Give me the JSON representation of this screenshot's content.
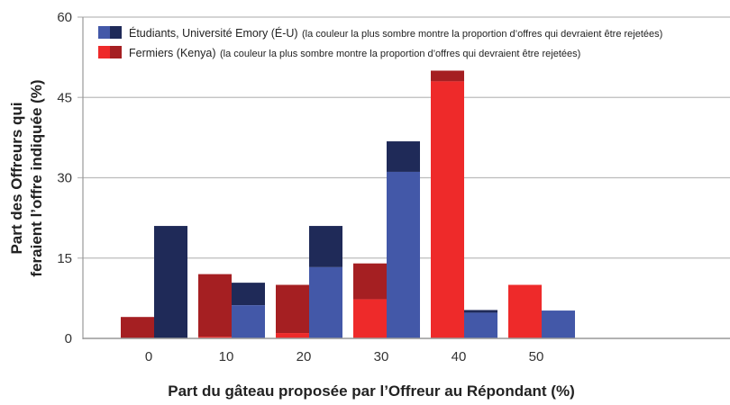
{
  "chart_data": {
    "type": "bar",
    "stacked_within_series": true,
    "xlabel": "Part du gâteau proposée par l’Offreur au Répondant (%)",
    "ylabel_line1": "Part des Offreurs qui",
    "ylabel_line2": "feraient l’offre indiquée  (%)",
    "categories": [
      "0",
      "10",
      "20",
      "30",
      "40",
      "50"
    ],
    "ylim": [
      0,
      60
    ],
    "yticks": [
      "0",
      "15",
      "30",
      "45",
      "60"
    ],
    "grid": true,
    "legend_position": "top-left",
    "series": [
      {
        "name": "Fermiers (Kenya)",
        "note": "(la couleur la plus sombre montre la proportion d’offres qui devraient être rejetées)",
        "color_light": "#ee2a2a",
        "color_dark": "#a51f22",
        "totals": [
          4,
          12,
          10,
          14,
          50,
          10
        ],
        "accepted": [
          0,
          0.3,
          1,
          7.3,
          48,
          10
        ]
      },
      {
        "name": "Étudiants, Université Emory (É-U)",
        "note": "(la couleur la plus sombre montre la proportion d’offres qui devraient être rejetées)",
        "color_light": "#4358a8",
        "color_dark": "#1f2a58",
        "totals": [
          21,
          10.4,
          21,
          36.8,
          5.3,
          5.2
        ],
        "accepted": [
          0,
          6.2,
          13.3,
          31.1,
          4.8,
          5.2
        ]
      }
    ]
  }
}
